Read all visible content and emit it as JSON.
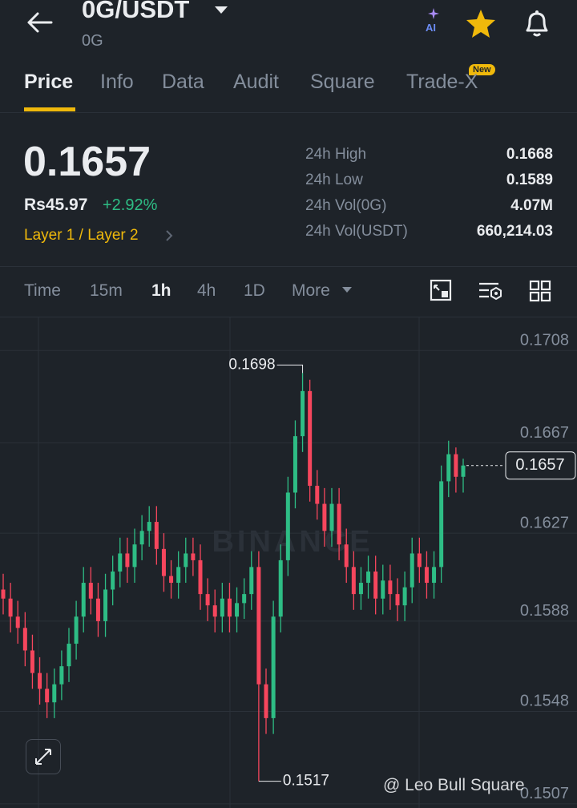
{
  "header": {
    "title": "0G/USDT",
    "subtitle": "0G",
    "ai": "AI"
  },
  "tabs": [
    "Price",
    "Info",
    "Data",
    "Audit",
    "Square",
    "Trade-X"
  ],
  "new_badge": "New",
  "price": {
    "last": "0.1657",
    "fiat": "Rs45.97",
    "change": "+2.92%",
    "tag": "Layer 1 / Layer 2"
  },
  "stats": [
    [
      "24h High",
      "0.1668"
    ],
    [
      "24h Low",
      "0.1589"
    ],
    [
      "24h Vol(0G)",
      "4.07M"
    ],
    [
      "24h Vol(USDT)",
      "660,214.03"
    ]
  ],
  "intervals": [
    "Time",
    "15m",
    "1h",
    "4h",
    "1D",
    "More"
  ],
  "watermark": "BINANCE",
  "credit": "@ Leo Bull Square",
  "chart_data": {
    "type": "candlestick",
    "open": [
      0.1602,
      0.1598,
      0.159,
      0.1585,
      0.1575,
      0.1565,
      0.1558,
      0.1552,
      0.156,
      0.1568,
      0.1578,
      0.159,
      0.1605,
      0.1598,
      0.1588,
      0.1602,
      0.161,
      0.1618,
      0.1612,
      0.1622,
      0.1628,
      0.1632,
      0.162,
      0.1608,
      0.1605,
      0.1612,
      0.1618,
      0.1615,
      0.16,
      0.1595,
      0.159,
      0.1598,
      0.159,
      0.1596,
      0.16,
      0.1612,
      0.156,
      0.1545,
      0.159,
      0.1615,
      0.1645,
      0.167,
      0.169,
      0.1648,
      0.164,
      0.1628,
      0.164,
      0.1622,
      0.1612,
      0.16,
      0.1605,
      0.161,
      0.1598,
      0.1606,
      0.16,
      0.1595,
      0.1603,
      0.1618,
      0.1612,
      0.1605,
      0.1612,
      0.165,
      0.1662,
      0.1652
    ],
    "high": [
      0.1609,
      0.1605,
      0.1597,
      0.1592,
      0.1582,
      0.1572,
      0.1565,
      0.1567,
      0.1575,
      0.1585,
      0.1597,
      0.1612,
      0.1612,
      0.1605,
      0.1609,
      0.1617,
      0.1625,
      0.1625,
      0.1629,
      0.1635,
      0.1639,
      0.1639,
      0.1627,
      0.1615,
      0.1619,
      0.1625,
      0.1625,
      0.1622,
      0.1607,
      0.1602,
      0.1605,
      0.1605,
      0.1603,
      0.1607,
      0.1619,
      0.1619,
      0.1567,
      0.1597,
      0.1622,
      0.1652,
      0.1677,
      0.1698,
      0.1695,
      0.1655,
      0.1647,
      0.1647,
      0.1647,
      0.1629,
      0.1619,
      0.1612,
      0.1617,
      0.1617,
      0.1613,
      0.1613,
      0.1607,
      0.161,
      0.1625,
      0.1625,
      0.1619,
      0.1619,
      0.1657,
      0.1668,
      0.1665,
      0.166
    ],
    "low": [
      0.1591,
      0.1583,
      0.1578,
      0.1568,
      0.1558,
      0.1551,
      0.1545,
      0.1545,
      0.1553,
      0.1561,
      0.1571,
      0.1583,
      0.1591,
      0.1581,
      0.1581,
      0.1595,
      0.1603,
      0.1605,
      0.1605,
      0.1615,
      0.1621,
      0.1613,
      0.1601,
      0.1598,
      0.1598,
      0.1605,
      0.1608,
      0.1593,
      0.1588,
      0.1583,
      0.1583,
      0.1583,
      0.1583,
      0.1589,
      0.1593,
      0.1517,
      0.1538,
      0.1538,
      0.1583,
      0.1608,
      0.1638,
      0.1663,
      0.1641,
      0.1633,
      0.1621,
      0.1621,
      0.1615,
      0.1605,
      0.1593,
      0.1593,
      0.1598,
      0.1591,
      0.1591,
      0.1593,
      0.1588,
      0.1588,
      0.1596,
      0.1605,
      0.1598,
      0.1598,
      0.1605,
      0.1643,
      0.1645,
      0.1645
    ],
    "close": [
      0.1598,
      0.159,
      0.1585,
      0.1575,
      0.1565,
      0.1558,
      0.1552,
      0.156,
      0.1568,
      0.1578,
      0.159,
      0.1605,
      0.1598,
      0.1588,
      0.1602,
      0.161,
      0.1618,
      0.1612,
      0.1622,
      0.1628,
      0.1632,
      0.162,
      0.1608,
      0.1605,
      0.1612,
      0.1618,
      0.1615,
      0.16,
      0.1595,
      0.159,
      0.1598,
      0.159,
      0.1596,
      0.16,
      0.1612,
      0.156,
      0.1545,
      0.159,
      0.1615,
      0.1645,
      0.167,
      0.169,
      0.1648,
      0.164,
      0.1628,
      0.164,
      0.1622,
      0.1612,
      0.16,
      0.1605,
      0.161,
      0.1598,
      0.1606,
      0.16,
      0.1595,
      0.1603,
      0.1618,
      0.1612,
      0.1605,
      0.1612,
      0.165,
      0.1662,
      0.1652,
      0.1657
    ],
    "up_color": "#2ebd85",
    "down_color": "#f6465d",
    "ylim": [
      0.1508,
      0.1723
    ],
    "yticks": [
      0.1708,
      0.1667,
      0.1627,
      0.1588,
      0.1548,
      0.1507
    ],
    "grid": true,
    "last_price": 0.1657,
    "high_label": 0.1698,
    "low_label": 0.1517
  }
}
